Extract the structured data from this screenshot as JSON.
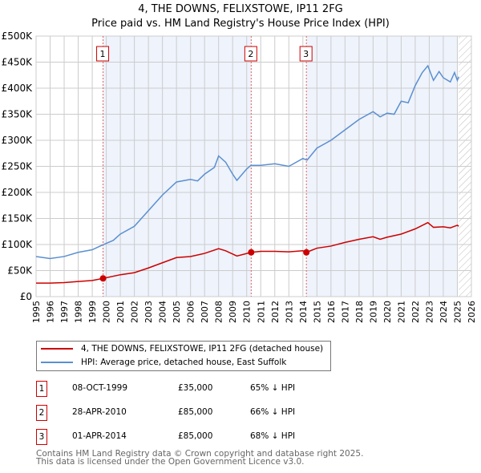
{
  "title": "4, THE DOWNS, FELIXSTOWE, IP11 2FG",
  "subtitle": "Price paid vs. HM Land Registry's House Price Index (HPI)",
  "chart_data": {
    "type": "line",
    "title": "4, THE DOWNS, FELIXSTOWE, IP11 2FG",
    "subtitle": "Price paid vs. HM Land Registry's House Price Index (HPI)",
    "xlim": [
      1995,
      2026
    ],
    "ylim": [
      0,
      500000
    ],
    "x_ticks": [
      "1995",
      "1996",
      "1997",
      "1998",
      "1999",
      "2000",
      "2001",
      "2002",
      "2003",
      "2004",
      "2005",
      "2006",
      "2007",
      "2008",
      "2009",
      "2010",
      "2011",
      "2012",
      "2013",
      "2014",
      "2015",
      "2016",
      "2017",
      "2018",
      "2019",
      "2020",
      "2021",
      "2022",
      "2023",
      "2024",
      "2025",
      "2026"
    ],
    "y_ticks": [
      {
        "v": 0,
        "label": "£0"
      },
      {
        "v": 50000,
        "label": "£50K"
      },
      {
        "v": 100000,
        "label": "£100K"
      },
      {
        "v": 150000,
        "label": "£150K"
      },
      {
        "v": 200000,
        "label": "£200K"
      },
      {
        "v": 250000,
        "label": "£250K"
      },
      {
        "v": 300000,
        "label": "£300K"
      },
      {
        "v": 350000,
        "label": "£350K"
      },
      {
        "v": 400000,
        "label": "£400K"
      },
      {
        "v": 450000,
        "label": "£450K"
      },
      {
        "v": 500000,
        "label": "£500K"
      }
    ],
    "grid": true,
    "series": [
      {
        "name": "4, THE DOWNS, FELIXSTOWE, IP11 2FG (detached house)",
        "color": "#cc0000",
        "x": [
          1995,
          1996,
          1997,
          1998,
          1999,
          1999.77,
          2001,
          2002,
          2003,
          2004,
          2005,
          2006,
          2007,
          2008,
          2008.5,
          2009.3,
          2010.32,
          2011,
          2012,
          2013,
          2014,
          2014.25,
          2015,
          2016,
          2017,
          2018,
          2019,
          2019.5,
          2020,
          2021,
          2022,
          2022.9,
          2023.3,
          2024,
          2024.5,
          2025,
          2025.1
        ],
        "y": [
          26000,
          26000,
          27000,
          29000,
          31000,
          35000,
          42000,
          46000,
          55000,
          65000,
          75000,
          77000,
          83000,
          92000,
          88000,
          78000,
          85000,
          87000,
          87000,
          86000,
          88000,
          85000,
          93000,
          97000,
          104000,
          110000,
          115000,
          110000,
          114000,
          120000,
          130000,
          142000,
          133000,
          134000,
          132000,
          137000,
          135000
        ]
      },
      {
        "name": "HPI: Average price, detached house, East Suffolk",
        "color": "#5b8fd0",
        "x": [
          1995,
          1996,
          1997,
          1998,
          1999,
          1999.8,
          2000.5,
          2001,
          2002,
          2003,
          2004,
          2005,
          2006,
          2006.5,
          2007,
          2007.7,
          2008,
          2008.5,
          2009,
          2009.3,
          2010,
          2010.3,
          2011,
          2012,
          2013,
          2014,
          2014.3,
          2015,
          2016,
          2017,
          2018,
          2019,
          2019.5,
          2020,
          2020.5,
          2021,
          2021.5,
          2022,
          2022.5,
          2022.9,
          2023.3,
          2023.7,
          2024,
          2024.5,
          2024.8,
          2025,
          2025.1
        ],
        "y": [
          77000,
          73000,
          77000,
          85000,
          90000,
          100000,
          108000,
          120000,
          135000,
          165000,
          195000,
          220000,
          225000,
          222000,
          235000,
          248000,
          270000,
          258000,
          235000,
          223000,
          245000,
          252000,
          252000,
          255000,
          250000,
          265000,
          262000,
          285000,
          300000,
          320000,
          340000,
          355000,
          345000,
          352000,
          350000,
          375000,
          372000,
          405000,
          430000,
          443000,
          415000,
          432000,
          420000,
          412000,
          430000,
          415000,
          422000
        ]
      }
    ],
    "sales": [
      {
        "label": "1",
        "x": 1999.77,
        "y": 35000
      },
      {
        "label": "2",
        "x": 2010.32,
        "y": 85000
      },
      {
        "label": "3",
        "x": 2014.25,
        "y": 85000
      }
    ],
    "legend_position": "bottom"
  },
  "legend": [
    "4, THE DOWNS, FELIXSTOWE, IP11 2FG (detached house)",
    "HPI: Average price, detached house, East Suffolk"
  ],
  "table": [
    {
      "num": "1",
      "date": "08-OCT-1999",
      "price": "£35,000",
      "hpi": "65% ↓ HPI"
    },
    {
      "num": "2",
      "date": "28-APR-2010",
      "price": "£85,000",
      "hpi": "66% ↓ HPI"
    },
    {
      "num": "3",
      "date": "01-APR-2014",
      "price": "£85,000",
      "hpi": "68% ↓ HPI"
    }
  ],
  "footer": [
    "Contains HM Land Registry data © Crown copyright and database right 2025.",
    "This data is licensed under the Open Government Licence v3.0."
  ]
}
